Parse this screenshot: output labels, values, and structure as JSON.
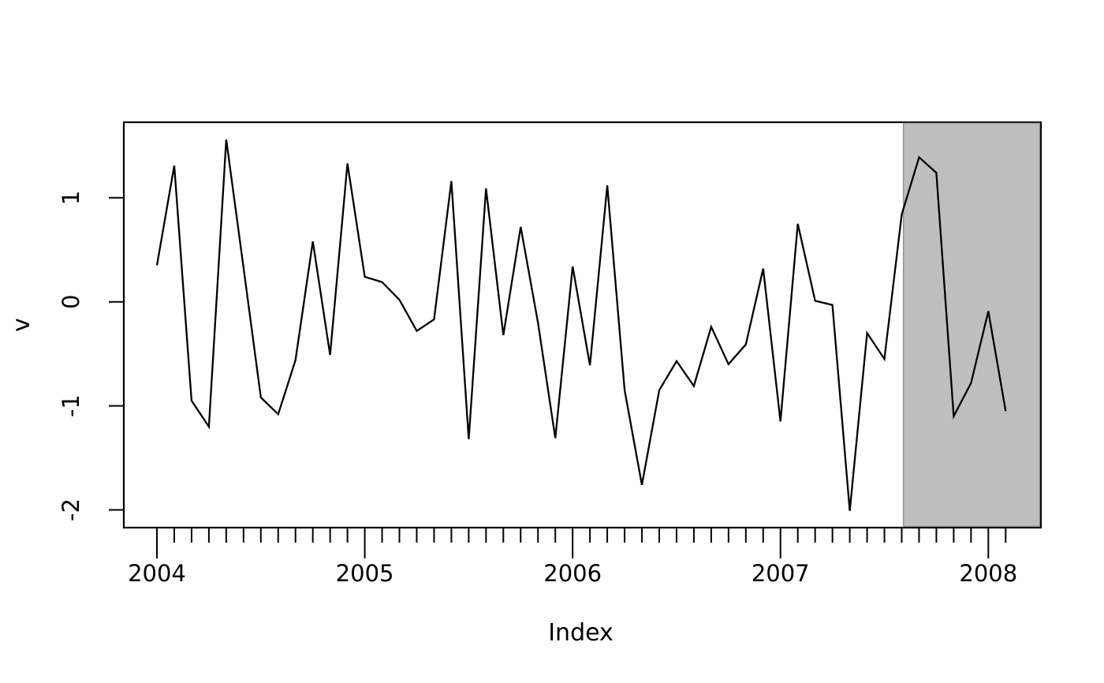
{
  "chart_data": {
    "type": "line",
    "title": "",
    "xlabel": "Index",
    "ylabel": "v",
    "x_start": "2004-01",
    "x_frequency": "monthly",
    "series": [
      {
        "name": "v",
        "color": "#000000",
        "values": [
          0.35,
          1.31,
          -0.95,
          -1.2,
          1.56,
          0.33,
          -0.92,
          -1.08,
          -0.56,
          0.58,
          -0.51,
          1.33,
          0.24,
          0.19,
          0.02,
          -0.28,
          -0.17,
          1.16,
          -1.32,
          1.09,
          -0.32,
          0.72,
          -0.2,
          -1.31,
          0.34,
          -0.61,
          1.12,
          -0.85,
          -1.76,
          -0.85,
          -0.57,
          -0.81,
          -0.24,
          -0.6,
          -0.41,
          0.32,
          -1.15,
          0.75,
          0.01,
          -0.03,
          -2.01,
          -0.3,
          -0.55,
          0.84,
          1.39,
          1.24,
          -1.1,
          -0.78,
          -0.09,
          -1.05
        ]
      }
    ],
    "x_tick_years": [
      "2004",
      "2005",
      "2006",
      "2007",
      "2008"
    ],
    "x_minor_ticks": "every month from 2004-01 to 2008-02",
    "y_tick_labels": [
      "1",
      "0",
      "-1",
      "-2"
    ],
    "y_tick_values": [
      1,
      0,
      -1,
      -2
    ],
    "ylim": [
      -2.17,
      1.72
    ],
    "grid": "off",
    "legend": "none",
    "highlight_region": {
      "description": "gray shaded band from ~Aug 2007 to right edge of plot",
      "from_month_index": 43.1,
      "to": "right edge of plot box",
      "fill": "#bebebe",
      "border": "#8f8f8f"
    },
    "line_color": "#000000",
    "frame_color": "#000000",
    "background": "#ffffff"
  }
}
